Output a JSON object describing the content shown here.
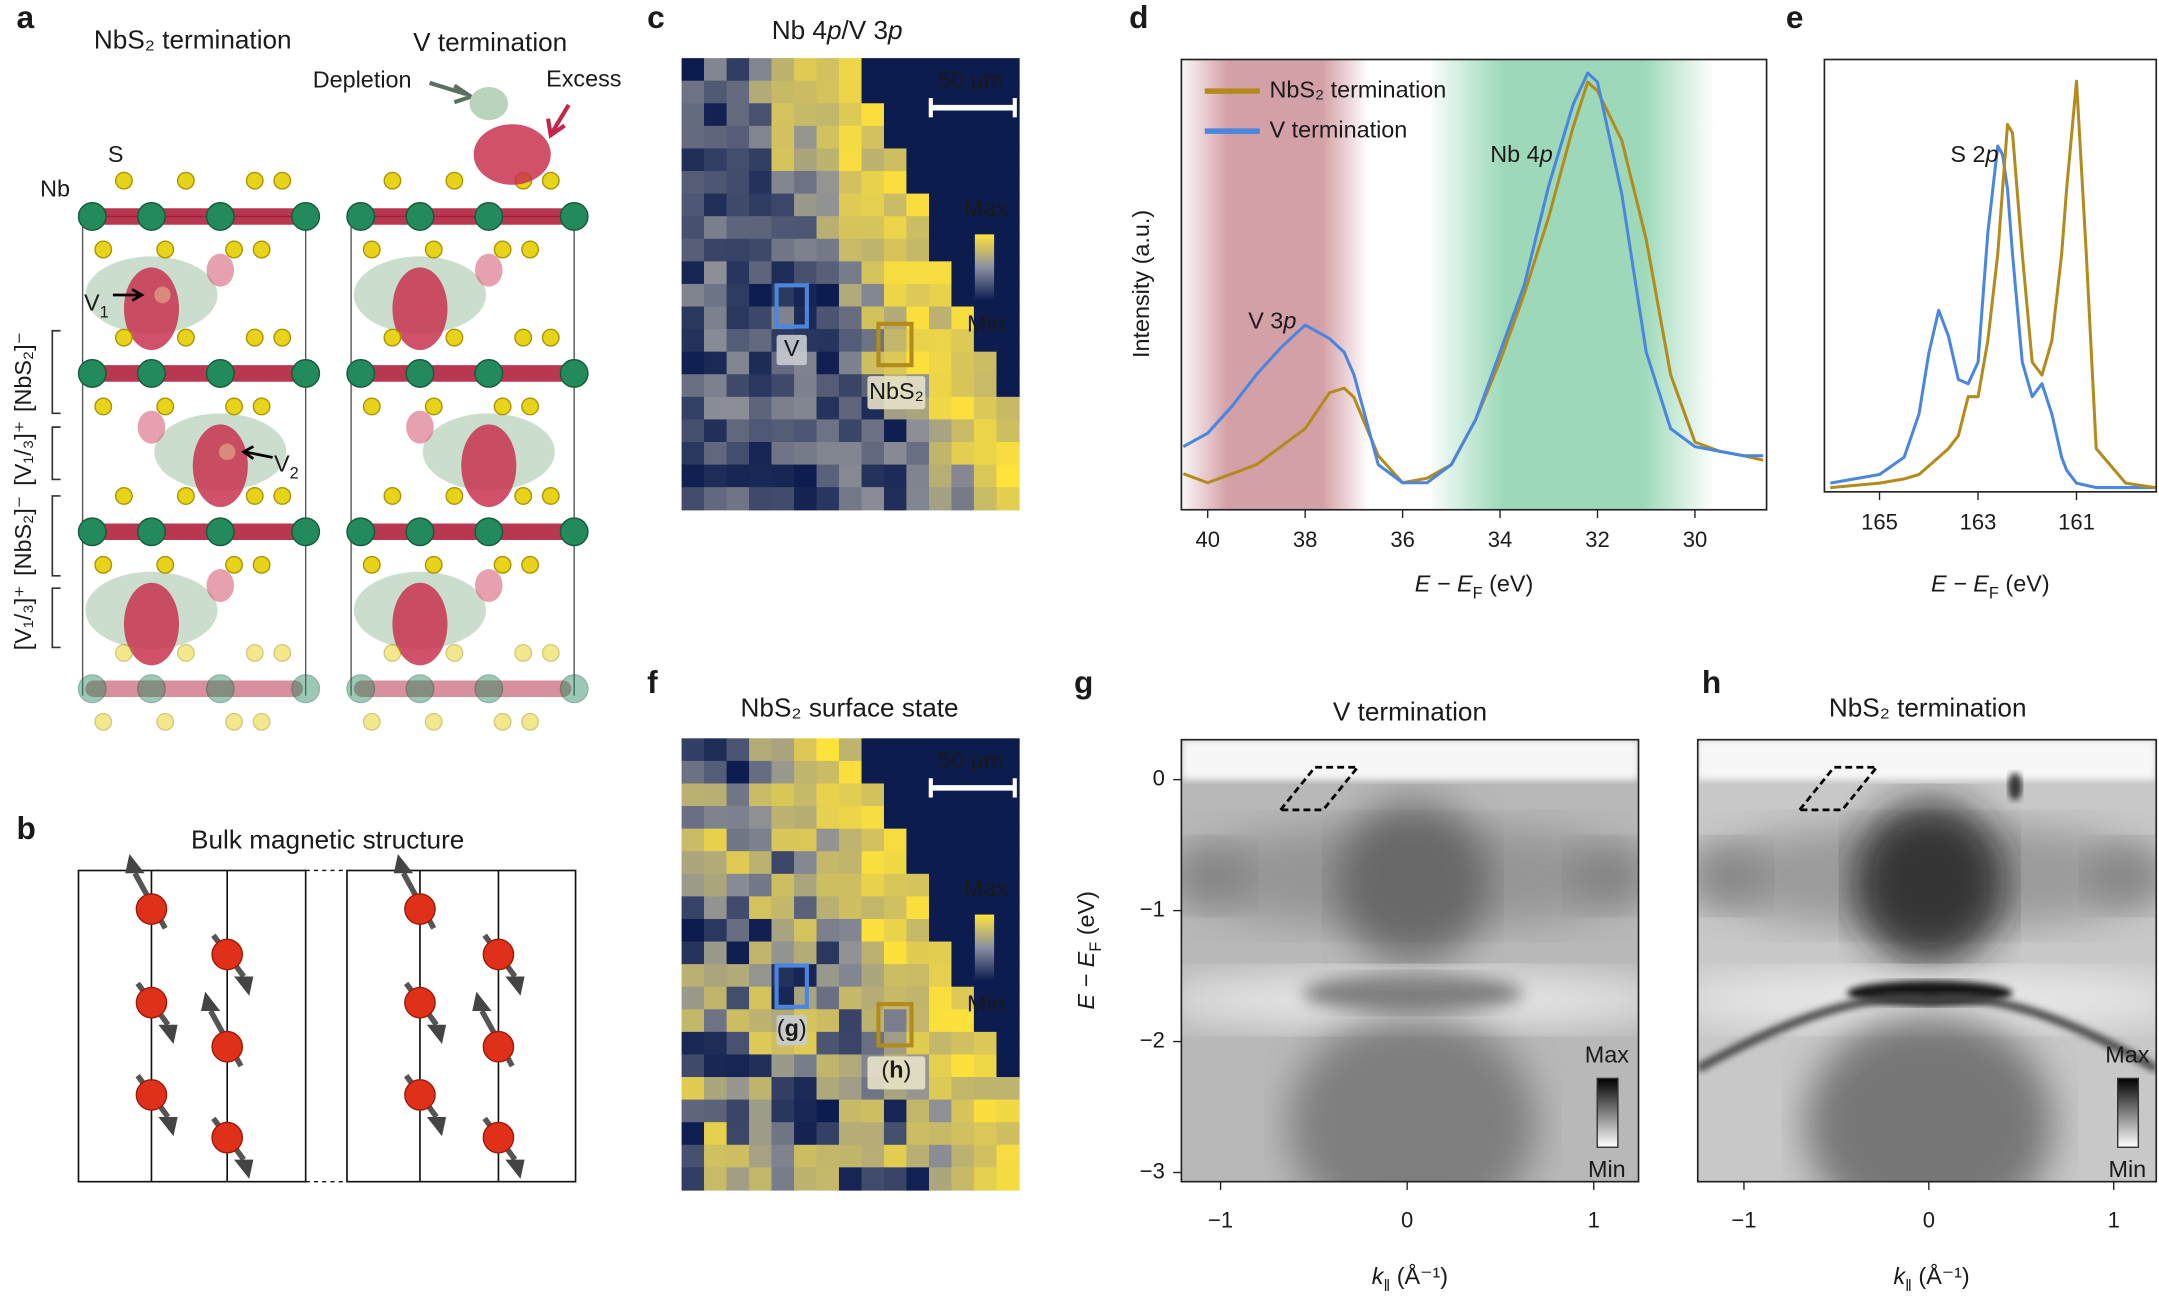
{
  "panels": {
    "a": {
      "label": "a",
      "left_title": "NbS₂ termination",
      "right_title": "V termination",
      "depletion": "Depletion",
      "excess": "Excess",
      "s_label": "S",
      "nb_label": "Nb",
      "v1": [
        "V",
        "1"
      ],
      "v2": [
        "V",
        "2"
      ],
      "layers": [
        "[NbS₂]⁻",
        "[V₁/₃]⁺",
        "[NbS₂]⁻",
        "[V₁/₃]⁺"
      ]
    },
    "b": {
      "label": "b",
      "title": "Bulk magnetic structure"
    },
    "c": {
      "label": "c",
      "title": [
        "Nb 4",
        "p",
        "/V 3",
        "p"
      ],
      "scale": "50 μm",
      "max": "Max",
      "min": "Min",
      "box_v": "V",
      "box_nbs2": "NbS₂"
    },
    "f": {
      "label": "f",
      "title": "NbS₂ surface state",
      "scale": "50 μm",
      "max": "Max",
      "min": "Min",
      "box_g": [
        "(",
        "g",
        ")"
      ],
      "box_h": [
        "(",
        "h",
        ")"
      ]
    }
  },
  "chart_data": [
    {
      "type": "line",
      "panel_label": "d",
      "x": [
        40.5,
        40,
        39.5,
        39,
        38.5,
        38,
        37.5,
        37.2,
        37,
        36.5,
        36,
        35.5,
        35,
        34.5,
        34,
        33.5,
        33,
        32.5,
        32.2,
        32,
        31.5,
        31,
        30.5,
        30,
        29.5,
        29,
        28.6
      ],
      "xlim": [
        40.54,
        28.53
      ],
      "xticks": [
        40,
        38,
        36,
        34,
        32,
        30
      ],
      "ylim": [
        0,
        1
      ],
      "xlabel": [
        "E − E",
        "F",
        " (eV)"
      ],
      "ylabel": "Intensity (a.u.)",
      "series": [
        {
          "name": "NbS₂ termination",
          "color": "#b38b1d",
          "values": [
            0.08,
            0.06,
            0.08,
            0.1,
            0.14,
            0.18,
            0.26,
            0.27,
            0.25,
            0.12,
            0.06,
            0.07,
            0.1,
            0.2,
            0.33,
            0.48,
            0.65,
            0.85,
            0.95,
            0.93,
            0.82,
            0.6,
            0.3,
            0.15,
            0.13,
            0.12,
            0.11
          ]
        },
        {
          "name": "V termination",
          "color": "#4a86e0",
          "values": [
            0.14,
            0.17,
            0.23,
            0.3,
            0.36,
            0.41,
            0.38,
            0.35,
            0.3,
            0.1,
            0.06,
            0.06,
            0.1,
            0.2,
            0.35,
            0.5,
            0.72,
            0.9,
            0.97,
            0.95,
            0.7,
            0.35,
            0.18,
            0.14,
            0.13,
            0.12,
            0.12
          ]
        }
      ],
      "annotations": [
        [
          "V 3",
          "p"
        ],
        [
          "Nb 4",
          "p"
        ]
      ],
      "shaded_regions": [
        {
          "from": 40.54,
          "to": 36.7,
          "color": "#b5606a"
        },
        {
          "from": 35.4,
          "to": 29.6,
          "color": "#5cc08a"
        }
      ]
    },
    {
      "type": "line",
      "panel_label": "e",
      "x": [
        166,
        165,
        164.5,
        164.2,
        164,
        163.8,
        163.6,
        163.4,
        163.2,
        163,
        162.8,
        162.6,
        162.5,
        162.4,
        162.3,
        162.1,
        161.9,
        161.7,
        161.5,
        161.3,
        161.2,
        161,
        160.8,
        160.6,
        160,
        159.4
      ],
      "xlim": [
        166.12,
        159.38
      ],
      "xticks": [
        165,
        163,
        161
      ],
      "ylim": [
        0,
        1
      ],
      "xlabel": [
        "E − E",
        "F",
        " (eV)"
      ],
      "series": [
        {
          "color": "#4a86e0",
          "values": [
            0.02,
            0.04,
            0.08,
            0.18,
            0.32,
            0.42,
            0.36,
            0.26,
            0.25,
            0.3,
            0.6,
            0.8,
            0.78,
            0.7,
            0.55,
            0.3,
            0.22,
            0.25,
            0.18,
            0.08,
            0.05,
            0.02,
            0.015,
            0.01,
            0.01,
            0.01
          ]
        },
        {
          "color": "#b38b1d",
          "values": [
            0.01,
            0.02,
            0.03,
            0.04,
            0.06,
            0.08,
            0.1,
            0.13,
            0.22,
            0.22,
            0.35,
            0.55,
            0.7,
            0.85,
            0.83,
            0.55,
            0.3,
            0.27,
            0.35,
            0.55,
            0.7,
            0.95,
            0.55,
            0.1,
            0.02,
            0.01
          ]
        }
      ],
      "annotations": [
        [
          "S 2",
          "p"
        ]
      ]
    },
    {
      "type": "image",
      "panel_label": "g",
      "title": "V termination",
      "xlim": [
        -1.21,
        1.24
      ],
      "xticks": [
        {
          "value": -1,
          "label": "−1"
        },
        0,
        1
      ],
      "ylim": [
        -3.07,
        0.305
      ],
      "yticks": [
        0,
        {
          "value": -1,
          "label": "−1"
        },
        {
          "value": -2,
          "label": "−2"
        },
        {
          "value": -3,
          "label": "−3"
        }
      ],
      "xlabel": [
        "k",
        "‖",
        " (Å⁻¹)"
      ],
      "ylabel": [
        "E − E",
        "F",
        " (eV)"
      ],
      "colorbar": {
        "max": "Max",
        "min": "Min"
      }
    },
    {
      "type": "image",
      "panel_label": "h",
      "title": "NbS₂ termination",
      "xlim": [
        -1.25,
        1.23
      ],
      "xticks": [
        {
          "value": -1,
          "label": "−1"
        },
        0,
        1
      ],
      "ylim": [
        -3.07,
        0.305
      ],
      "xlabel": [
        "k",
        "‖",
        " (Å⁻¹)"
      ],
      "colorbar": {
        "max": "Max",
        "min": "Min"
      }
    }
  ]
}
